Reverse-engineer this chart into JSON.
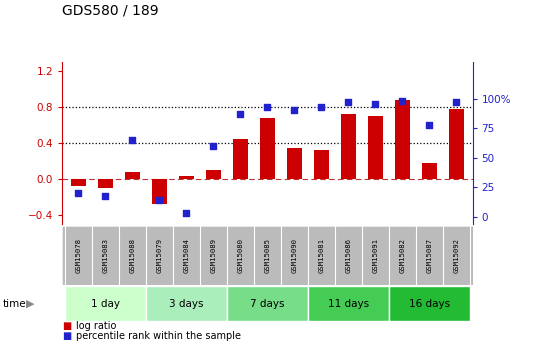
{
  "title": "GDS580 / 189",
  "samples": [
    "GSM15078",
    "GSM15083",
    "GSM15088",
    "GSM15079",
    "GSM15084",
    "GSM15089",
    "GSM15080",
    "GSM15085",
    "GSM15090",
    "GSM15081",
    "GSM15086",
    "GSM15091",
    "GSM15082",
    "GSM15087",
    "GSM15092"
  ],
  "log_ratio": [
    -0.08,
    -0.1,
    0.08,
    -0.28,
    0.04,
    0.1,
    0.45,
    0.68,
    0.35,
    0.32,
    0.72,
    0.7,
    0.88,
    0.18,
    0.78
  ],
  "percentile": [
    20,
    18,
    65,
    14,
    3,
    60,
    87,
    93,
    91,
    93,
    97,
    96,
    98,
    78,
    97
  ],
  "bar_color": "#cc0000",
  "dot_color": "#2222cc",
  "ylim_left": [
    -0.5,
    1.3
  ],
  "ylim_right": [
    -6.25,
    131.25
  ],
  "yticks_left": [
    -0.4,
    0.0,
    0.4,
    0.8,
    1.2
  ],
  "yticks_right": [
    0,
    25,
    50,
    75,
    100
  ],
  "hlines_dotted": [
    0.4,
    0.8
  ],
  "hlines_zero": 0.0,
  "groups": [
    {
      "label": "1 day",
      "start": 0,
      "end": 2,
      "color": "#ccffcc"
    },
    {
      "label": "3 days",
      "start": 3,
      "end": 5,
      "color": "#aaeebb"
    },
    {
      "label": "7 days",
      "start": 6,
      "end": 8,
      "color": "#77dd88"
    },
    {
      "label": "11 days",
      "start": 9,
      "end": 11,
      "color": "#44cc55"
    },
    {
      "label": "16 days",
      "start": 12,
      "end": 14,
      "color": "#22bb33"
    }
  ],
  "legend_items": [
    {
      "label": "log ratio",
      "color": "#cc0000"
    },
    {
      "label": "percentile rank within the sample",
      "color": "#2222cc"
    }
  ],
  "tick_area_color": "#bbbbbb"
}
